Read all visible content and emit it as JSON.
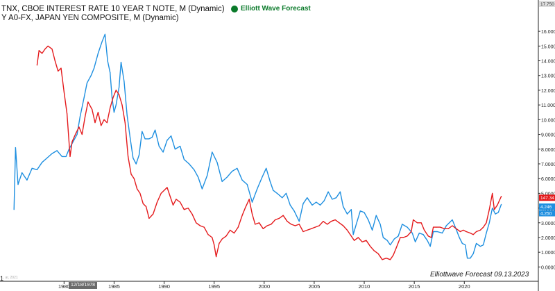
{
  "header": {
    "line1": "TNX, CBOE INTEREST RATE 10 YEAR T NOTE, M (Dynamic)",
    "line2": "Y A0-FX, JAPAN YEN COMPOSITE, M (Dynamic)"
  },
  "logo": {
    "text": "Elliott Wave Forecast",
    "color": "#0a7a2a"
  },
  "footer": {
    "text": "Elliottwave Forecast  09.13.2023"
  },
  "edge_mark": "1",
  "watermark": "... ar, 2021",
  "date_box": "12/18/1978",
  "colors": {
    "tnx": "#1e8fe0",
    "yen": "#e41a1c",
    "axis": "#222222"
  },
  "top_price_label": "17.750",
  "price_badges": {
    "tnx": "4.246",
    "tnx_second": "4.250",
    "yen": "147.34"
  },
  "chart_data": {
    "type": "line",
    "x_ticks": [
      1980,
      1985,
      1990,
      1995,
      2000,
      2005,
      2010,
      2015,
      2020
    ],
    "y_ticks": [
      "0.0000",
      "1.0000",
      "2.0000",
      "3.0000",
      "4.0000",
      "5.0000",
      "6.0000",
      "7.0000",
      "8.0000",
      "9.0000",
      "10.000",
      "11.000",
      "12.000",
      "13.000",
      "14.000",
      "15.000",
      "16.000"
    ],
    "xlim": [
      1973.6,
      2027.4
    ],
    "ylim": [
      -0.5,
      17.75
    ],
    "series": [
      {
        "key": "tnx",
        "points": [
          [
            1975.0,
            3.9
          ],
          [
            1975.15,
            8.1
          ],
          [
            1975.4,
            5.6
          ],
          [
            1975.8,
            6.4
          ],
          [
            1976.3,
            5.9
          ],
          [
            1976.8,
            6.7
          ],
          [
            1977.3,
            6.6
          ],
          [
            1977.8,
            7.1
          ],
          [
            1978.3,
            7.4
          ],
          [
            1978.8,
            7.7
          ],
          [
            1979.3,
            7.9
          ],
          [
            1979.8,
            7.5
          ],
          [
            1980.2,
            7.5
          ],
          [
            1980.5,
            8.0
          ],
          [
            1980.9,
            8.5
          ],
          [
            1981.3,
            9.0
          ],
          [
            1981.6,
            10.2
          ],
          [
            1982.0,
            11.5
          ],
          [
            1982.3,
            12.5
          ],
          [
            1982.7,
            13.0
          ],
          [
            1983.0,
            13.5
          ],
          [
            1983.4,
            14.5
          ],
          [
            1983.8,
            15.3
          ],
          [
            1984.1,
            15.8
          ],
          [
            1984.35,
            14.0
          ],
          [
            1984.6,
            13.2
          ],
          [
            1984.8,
            11.5
          ],
          [
            1985.0,
            10.5
          ],
          [
            1985.2,
            11.0
          ],
          [
            1985.5,
            12.2
          ],
          [
            1985.7,
            13.9
          ],
          [
            1986.0,
            12.6
          ],
          [
            1986.3,
            10.3
          ],
          [
            1986.6,
            8.8
          ],
          [
            1986.9,
            7.4
          ],
          [
            1987.2,
            7.0
          ],
          [
            1987.5,
            7.6
          ],
          [
            1987.8,
            9.2
          ],
          [
            1988.1,
            8.7
          ],
          [
            1988.5,
            8.7
          ],
          [
            1988.8,
            8.8
          ],
          [
            1989.1,
            9.3
          ],
          [
            1989.5,
            8.2
          ],
          [
            1989.9,
            7.8
          ],
          [
            1990.3,
            8.6
          ],
          [
            1990.7,
            8.9
          ],
          [
            1991.1,
            8.0
          ],
          [
            1991.6,
            8.2
          ],
          [
            1992.0,
            7.3
          ],
          [
            1992.5,
            7.0
          ],
          [
            1993.0,
            6.6
          ],
          [
            1993.4,
            6.1
          ],
          [
            1993.8,
            5.3
          ],
          [
            1994.3,
            6.2
          ],
          [
            1994.8,
            7.8
          ],
          [
            1995.3,
            7.1
          ],
          [
            1995.8,
            5.8
          ],
          [
            1996.3,
            6.1
          ],
          [
            1996.8,
            6.5
          ],
          [
            1997.3,
            6.7
          ],
          [
            1997.8,
            5.9
          ],
          [
            1998.3,
            5.6
          ],
          [
            1998.8,
            4.4
          ],
          [
            1999.3,
            5.3
          ],
          [
            1999.8,
            6.1
          ],
          [
            2000.2,
            6.7
          ],
          [
            2000.6,
            5.8
          ],
          [
            2000.9,
            5.2
          ],
          [
            2001.3,
            5.0
          ],
          [
            2001.8,
            4.7
          ],
          [
            2002.2,
            5.0
          ],
          [
            2002.6,
            4.2
          ],
          [
            2003.0,
            3.8
          ],
          [
            2003.5,
            3.1
          ],
          [
            2003.9,
            4.3
          ],
          [
            2004.3,
            4.7
          ],
          [
            2004.8,
            4.2
          ],
          [
            2005.2,
            4.4
          ],
          [
            2005.6,
            4.2
          ],
          [
            2006.0,
            4.5
          ],
          [
            2006.4,
            5.1
          ],
          [
            2006.8,
            4.6
          ],
          [
            2007.2,
            4.7
          ],
          [
            2007.6,
            5.1
          ],
          [
            2007.9,
            4.1
          ],
          [
            2008.3,
            3.6
          ],
          [
            2008.7,
            3.9
          ],
          [
            2008.9,
            2.2
          ],
          [
            2009.2,
            2.9
          ],
          [
            2009.6,
            3.8
          ],
          [
            2010.0,
            3.7
          ],
          [
            2010.4,
            3.2
          ],
          [
            2010.8,
            2.5
          ],
          [
            2011.2,
            3.5
          ],
          [
            2011.6,
            2.9
          ],
          [
            2011.9,
            2.0
          ],
          [
            2012.3,
            1.8
          ],
          [
            2012.6,
            1.5
          ],
          [
            2013.0,
            1.9
          ],
          [
            2013.4,
            2.1
          ],
          [
            2013.8,
            2.9
          ],
          [
            2014.3,
            2.7
          ],
          [
            2014.8,
            2.3
          ],
          [
            2015.1,
            1.7
          ],
          [
            2015.5,
            2.3
          ],
          [
            2015.9,
            2.2
          ],
          [
            2016.3,
            1.8
          ],
          [
            2016.6,
            1.4
          ],
          [
            2016.9,
            2.4
          ],
          [
            2017.3,
            2.4
          ],
          [
            2017.8,
            2.3
          ],
          [
            2018.2,
            2.8
          ],
          [
            2018.8,
            3.2
          ],
          [
            2019.1,
            2.7
          ],
          [
            2019.5,
            2.0
          ],
          [
            2019.8,
            1.6
          ],
          [
            2020.1,
            1.5
          ],
          [
            2020.3,
            0.6
          ],
          [
            2020.6,
            0.6
          ],
          [
            2020.9,
            0.9
          ],
          [
            2021.2,
            1.6
          ],
          [
            2021.6,
            1.4
          ],
          [
            2021.9,
            1.5
          ],
          [
            2022.2,
            2.3
          ],
          [
            2022.5,
            3.0
          ],
          [
            2022.8,
            4.0
          ],
          [
            2023.1,
            3.6
          ],
          [
            2023.4,
            3.7
          ],
          [
            2023.7,
            4.25
          ]
        ]
      },
      {
        "key": "yen",
        "points": [
          [
            1977.3,
            13.7
          ],
          [
            1977.5,
            14.7
          ],
          [
            1977.8,
            14.5
          ],
          [
            1978.1,
            14.8
          ],
          [
            1978.4,
            15.0
          ],
          [
            1978.8,
            14.8
          ],
          [
            1979.1,
            14.0
          ],
          [
            1979.4,
            13.3
          ],
          [
            1979.7,
            13.5
          ],
          [
            1980.0,
            11.9
          ],
          [
            1980.3,
            10.4
          ],
          [
            1980.6,
            7.5
          ],
          [
            1980.8,
            8.5
          ],
          [
            1981.2,
            9.1
          ],
          [
            1981.5,
            9.5
          ],
          [
            1981.8,
            9.0
          ],
          [
            1982.1,
            10.2
          ],
          [
            1982.4,
            11.2
          ],
          [
            1982.8,
            10.7
          ],
          [
            1983.1,
            9.8
          ],
          [
            1983.4,
            10.5
          ],
          [
            1983.7,
            9.6
          ],
          [
            1984.0,
            10.0
          ],
          [
            1984.3,
            9.8
          ],
          [
            1984.6,
            10.8
          ],
          [
            1984.9,
            11.5
          ],
          [
            1985.2,
            12.0
          ],
          [
            1985.5,
            11.7
          ],
          [
            1985.8,
            11.0
          ],
          [
            1986.1,
            9.8
          ],
          [
            1986.4,
            7.5
          ],
          [
            1986.7,
            6.3
          ],
          [
            1987.0,
            6.0
          ],
          [
            1987.3,
            5.3
          ],
          [
            1987.6,
            5.0
          ],
          [
            1987.9,
            4.3
          ],
          [
            1988.2,
            4.1
          ],
          [
            1988.5,
            3.3
          ],
          [
            1988.9,
            3.6
          ],
          [
            1989.3,
            4.4
          ],
          [
            1989.7,
            5.0
          ],
          [
            1990.0,
            5.2
          ],
          [
            1990.3,
            5.4
          ],
          [
            1990.6,
            4.8
          ],
          [
            1990.9,
            4.2
          ],
          [
            1991.2,
            4.6
          ],
          [
            1991.6,
            4.4
          ],
          [
            1992.0,
            3.9
          ],
          [
            1992.4,
            4.0
          ],
          [
            1992.8,
            3.6
          ],
          [
            1993.2,
            3.0
          ],
          [
            1993.6,
            2.8
          ],
          [
            1994.0,
            2.7
          ],
          [
            1994.4,
            2.2
          ],
          [
            1994.8,
            2.0
          ],
          [
            1995.0,
            1.5
          ],
          [
            1995.2,
            0.7
          ],
          [
            1995.5,
            1.6
          ],
          [
            1995.8,
            1.9
          ],
          [
            1996.2,
            2.1
          ],
          [
            1996.6,
            2.5
          ],
          [
            1997.0,
            2.3
          ],
          [
            1997.4,
            2.7
          ],
          [
            1997.8,
            3.5
          ],
          [
            1998.1,
            4.0
          ],
          [
            1998.5,
            4.6
          ],
          [
            1998.8,
            3.6
          ],
          [
            1999.1,
            2.9
          ],
          [
            1999.5,
            3.0
          ],
          [
            1999.9,
            2.6
          ],
          [
            2000.3,
            2.8
          ],
          [
            2000.7,
            2.9
          ],
          [
            2001.1,
            3.2
          ],
          [
            2001.5,
            3.3
          ],
          [
            2001.9,
            3.5
          ],
          [
            2002.3,
            3.1
          ],
          [
            2002.7,
            2.9
          ],
          [
            2003.1,
            2.8
          ],
          [
            2003.5,
            2.9
          ],
          [
            2003.9,
            2.4
          ],
          [
            2004.3,
            2.5
          ],
          [
            2004.7,
            2.6
          ],
          [
            2005.1,
            2.7
          ],
          [
            2005.5,
            2.8
          ],
          [
            2005.9,
            3.1
          ],
          [
            2006.3,
            2.9
          ],
          [
            2006.7,
            3.1
          ],
          [
            2007.1,
            3.2
          ],
          [
            2007.5,
            3.0
          ],
          [
            2007.9,
            2.8
          ],
          [
            2008.3,
            2.5
          ],
          [
            2008.7,
            2.1
          ],
          [
            2009.0,
            1.8
          ],
          [
            2009.4,
            2.0
          ],
          [
            2009.8,
            1.7
          ],
          [
            2010.2,
            1.8
          ],
          [
            2010.6,
            1.4
          ],
          [
            2011.0,
            1.1
          ],
          [
            2011.4,
            0.9
          ],
          [
            2011.8,
            0.5
          ],
          [
            2012.2,
            0.6
          ],
          [
            2012.6,
            0.5
          ],
          [
            2012.9,
            0.8
          ],
          [
            2013.2,
            1.3
          ],
          [
            2013.6,
            2.0
          ],
          [
            2013.9,
            2.0
          ],
          [
            2014.3,
            2.1
          ],
          [
            2014.7,
            2.4
          ],
          [
            2014.9,
            3.2
          ],
          [
            2015.3,
            3.0
          ],
          [
            2015.7,
            3.0
          ],
          [
            2016.0,
            2.5
          ],
          [
            2016.4,
            2.1
          ],
          [
            2016.7,
            2.0
          ],
          [
            2016.9,
            2.7
          ],
          [
            2017.2,
            2.7
          ],
          [
            2017.6,
            2.7
          ],
          [
            2018.0,
            2.6
          ],
          [
            2018.4,
            2.6
          ],
          [
            2018.8,
            2.8
          ],
          [
            2019.2,
            2.6
          ],
          [
            2019.6,
            2.4
          ],
          [
            2019.9,
            2.5
          ],
          [
            2020.2,
            2.4
          ],
          [
            2020.6,
            2.3
          ],
          [
            2020.9,
            2.2
          ],
          [
            2021.2,
            2.4
          ],
          [
            2021.6,
            2.5
          ],
          [
            2021.9,
            2.7
          ],
          [
            2022.2,
            3.0
          ],
          [
            2022.5,
            3.9
          ],
          [
            2022.8,
            5.0
          ],
          [
            2023.0,
            3.9
          ],
          [
            2023.3,
            4.2
          ],
          [
            2023.7,
            4.8
          ]
        ]
      }
    ]
  }
}
